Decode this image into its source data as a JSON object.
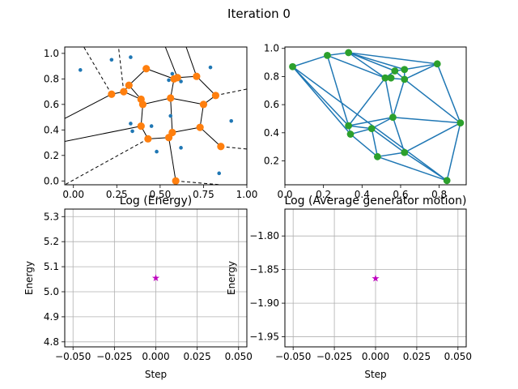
{
  "figure": {
    "title": "Iteration 0"
  },
  "colors": {
    "generator": "#1f77b4",
    "vertex": "#ff7f0e",
    "edge": "#1f77b4",
    "node": "#2ca02c",
    "marker": "#bf00bf",
    "grid": "#b0b0b0"
  },
  "chart_data": [
    {
      "type": "scatter",
      "name": "voronoi",
      "title": "",
      "xlim": [
        -0.05,
        1.0
      ],
      "ylim": [
        -0.03,
        1.05
      ],
      "xticks": [
        "0.00",
        "0.25",
        "0.50",
        "0.75",
        "1.00"
      ],
      "xtick_values": [
        0,
        0.25,
        0.5,
        0.75,
        1.0
      ],
      "yticks": [
        "0.0",
        "0.2",
        "0.4",
        "0.6",
        "0.8",
        "1.0"
      ],
      "ytick_values": [
        0,
        0.2,
        0.4,
        0.6,
        0.8,
        1.0
      ],
      "generators": [
        [
          0.04,
          0.87
        ],
        [
          0.22,
          0.95
        ],
        [
          0.33,
          0.97
        ],
        [
          0.57,
          0.84
        ],
        [
          0.55,
          0.79
        ],
        [
          0.62,
          0.78
        ],
        [
          0.79,
          0.89
        ],
        [
          0.56,
          0.51
        ],
        [
          0.33,
          0.45
        ],
        [
          0.34,
          0.39
        ],
        [
          0.45,
          0.43
        ],
        [
          0.91,
          0.47
        ],
        [
          0.62,
          0.26
        ],
        [
          0.48,
          0.23
        ],
        [
          0.84,
          0.06
        ]
      ],
      "vertices": [
        [
          0.22,
          0.68
        ],
        [
          0.29,
          0.7
        ],
        [
          0.32,
          0.75
        ],
        [
          0.42,
          0.88
        ],
        [
          0.39,
          0.64
        ],
        [
          0.4,
          0.6
        ],
        [
          0.39,
          0.43
        ],
        [
          0.43,
          0.33
        ],
        [
          0.55,
          0.34
        ],
        [
          0.57,
          0.38
        ],
        [
          0.56,
          0.65
        ],
        [
          0.58,
          0.8
        ],
        [
          0.6,
          0.81
        ],
        [
          0.71,
          0.82
        ],
        [
          0.75,
          0.6
        ],
        [
          0.82,
          0.67
        ],
        [
          0.73,
          0.42
        ],
        [
          0.85,
          0.27
        ],
        [
          0.59,
          0.0
        ]
      ],
      "edges": [
        [
          -0.05,
          0.49,
          0.22,
          0.68,
          "solid"
        ],
        [
          0.22,
          0.68,
          0.29,
          0.7,
          "solid"
        ],
        [
          0.29,
          0.7,
          0.32,
          0.75,
          "solid"
        ],
        [
          0.32,
          0.75,
          0.42,
          0.88,
          "solid"
        ],
        [
          0.42,
          0.88,
          0.58,
          0.8,
          "solid"
        ],
        [
          0.58,
          0.8,
          0.6,
          0.81,
          "solid"
        ],
        [
          0.6,
          0.81,
          0.71,
          0.82,
          "solid"
        ],
        [
          0.71,
          0.82,
          0.82,
          0.67,
          "solid"
        ],
        [
          0.82,
          0.67,
          0.75,
          0.6,
          "solid"
        ],
        [
          0.75,
          0.6,
          0.56,
          0.65,
          "solid"
        ],
        [
          0.56,
          0.65,
          0.58,
          0.8,
          "solid"
        ],
        [
          0.56,
          0.65,
          0.4,
          0.6,
          "solid"
        ],
        [
          0.4,
          0.6,
          0.39,
          0.64,
          "solid"
        ],
        [
          0.39,
          0.64,
          0.29,
          0.7,
          "solid"
        ],
        [
          0.39,
          0.64,
          0.32,
          0.75,
          "solid"
        ],
        [
          0.4,
          0.6,
          0.39,
          0.43,
          "solid"
        ],
        [
          0.39,
          0.43,
          0.43,
          0.33,
          "solid"
        ],
        [
          0.43,
          0.33,
          0.55,
          0.34,
          "solid"
        ],
        [
          0.55,
          0.34,
          0.57,
          0.38,
          "solid"
        ],
        [
          0.57,
          0.38,
          0.73,
          0.42,
          "solid"
        ],
        [
          0.73,
          0.42,
          0.75,
          0.6,
          "solid"
        ],
        [
          0.73,
          0.42,
          0.85,
          0.27,
          "solid"
        ],
        [
          0.55,
          0.34,
          0.59,
          0.0,
          "solid"
        ],
        [
          0.57,
          0.38,
          0.56,
          0.65,
          "solid"
        ],
        [
          0.39,
          0.43,
          -0.05,
          0.31,
          "solid"
        ],
        [
          0.6,
          0.81,
          0.53,
          1.05,
          "solid"
        ],
        [
          0.71,
          0.82,
          0.65,
          1.05,
          "solid"
        ],
        [
          0.22,
          0.68,
          0.06,
          1.05,
          "dashed"
        ],
        [
          0.29,
          0.7,
          0.26,
          1.05,
          "dashed"
        ],
        [
          0.82,
          0.67,
          1.0,
          0.72,
          "dashed"
        ],
        [
          0.85,
          0.27,
          1.0,
          0.25,
          "dashed"
        ],
        [
          0.59,
          0.0,
          0.85,
          -0.03,
          "dashed"
        ],
        [
          0.43,
          0.33,
          -0.05,
          -0.03,
          "dashed"
        ]
      ]
    },
    {
      "type": "line",
      "name": "delaunay",
      "title": "",
      "xlim": [
        0.0,
        0.94
      ],
      "ylim": [
        0.03,
        1.01
      ],
      "xticks": [
        "0.0",
        "0.2",
        "0.4",
        "0.6",
        "0.8"
      ],
      "xtick_values": [
        0,
        0.2,
        0.4,
        0.6,
        0.8
      ],
      "yticks": [
        "0.2",
        "0.4",
        "0.6",
        "0.8",
        "1.0"
      ],
      "ytick_values": [
        0.2,
        0.4,
        0.6,
        0.8,
        1.0
      ],
      "nodes": [
        [
          0.04,
          0.87
        ],
        [
          0.22,
          0.95
        ],
        [
          0.33,
          0.97
        ],
        [
          0.57,
          0.84
        ],
        [
          0.55,
          0.79
        ],
        [
          0.62,
          0.78
        ],
        [
          0.79,
          0.89
        ],
        [
          0.56,
          0.51
        ],
        [
          0.33,
          0.45
        ],
        [
          0.34,
          0.39
        ],
        [
          0.45,
          0.43
        ],
        [
          0.91,
          0.47
        ],
        [
          0.62,
          0.26
        ],
        [
          0.48,
          0.23
        ],
        [
          0.84,
          0.06
        ],
        [
          0.52,
          0.79
        ],
        [
          0.62,
          0.85
        ]
      ],
      "edges": [
        [
          0,
          1
        ],
        [
          1,
          2
        ],
        [
          0,
          8
        ],
        [
          0,
          9
        ],
        [
          0,
          14
        ],
        [
          1,
          15
        ],
        [
          1,
          8
        ],
        [
          2,
          16
        ],
        [
          2,
          15
        ],
        [
          2,
          3
        ],
        [
          2,
          6
        ],
        [
          16,
          6
        ],
        [
          16,
          3
        ],
        [
          15,
          3
        ],
        [
          15,
          5
        ],
        [
          15,
          8
        ],
        [
          3,
          5
        ],
        [
          5,
          6
        ],
        [
          6,
          11
        ],
        [
          5,
          11
        ],
        [
          5,
          7
        ],
        [
          15,
          7
        ],
        [
          7,
          11
        ],
        [
          7,
          12
        ],
        [
          7,
          10
        ],
        [
          7,
          8
        ],
        [
          8,
          10
        ],
        [
          8,
          9
        ],
        [
          9,
          10
        ],
        [
          10,
          13
        ],
        [
          9,
          13
        ],
        [
          13,
          12
        ],
        [
          12,
          11
        ],
        [
          12,
          14
        ],
        [
          11,
          14
        ],
        [
          13,
          14
        ],
        [
          16,
          5
        ],
        [
          10,
          12
        ]
      ]
    },
    {
      "type": "scatter",
      "title": "Log (Energy)",
      "xlabel": "Step",
      "ylabel": "Energy",
      "xlim": [
        -0.055,
        0.055
      ],
      "ylim": [
        4.78,
        5.33
      ],
      "xticks": [
        "−0.050",
        "−0.025",
        "0.000",
        "0.025",
        "0.050"
      ],
      "xtick_values": [
        -0.05,
        -0.025,
        0,
        0.025,
        0.05
      ],
      "yticks": [
        "4.8",
        "4.9",
        "5.0",
        "5.1",
        "5.2",
        "5.3"
      ],
      "ytick_values": [
        4.8,
        4.9,
        5.0,
        5.1,
        5.2,
        5.3
      ],
      "grid": true,
      "points": [
        [
          0.0,
          5.055
        ]
      ]
    },
    {
      "type": "scatter",
      "title": "Log (Average generator motion)",
      "xlabel": "Step",
      "ylabel": "Energy",
      "xlim": [
        -0.055,
        0.055
      ],
      "ylim": [
        -1.965,
        -1.76
      ],
      "xticks": [
        "−0.050",
        "−0.025",
        "0.000",
        "0.025",
        "0.050"
      ],
      "xtick_values": [
        -0.05,
        -0.025,
        0,
        0.025,
        0.05
      ],
      "yticks": [
        "−1.80",
        "−1.85",
        "−1.90",
        "−1.95"
      ],
      "ytick_values": [
        -1.8,
        -1.85,
        -1.9,
        -1.95
      ],
      "grid": true,
      "points": [
        [
          0.0,
          -1.863
        ]
      ]
    }
  ]
}
